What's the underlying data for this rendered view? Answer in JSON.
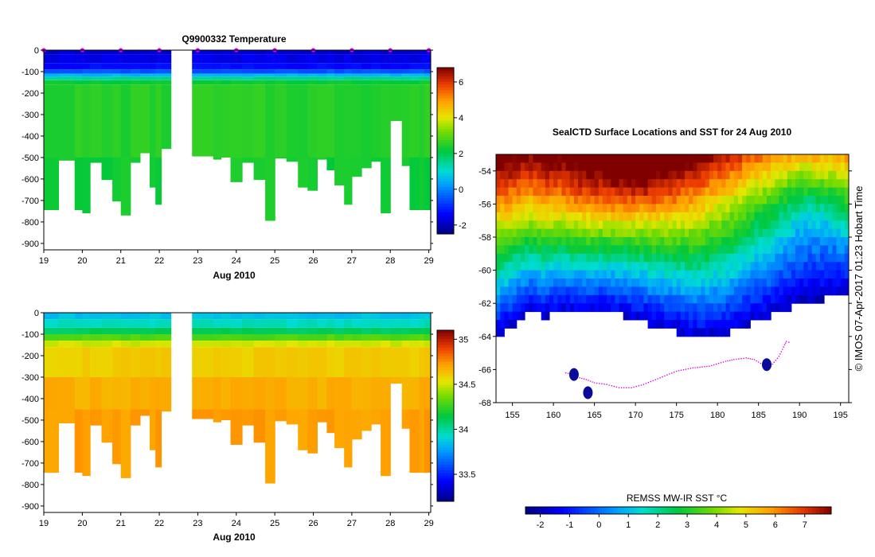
{
  "chart_data": [
    {
      "id": "temperature",
      "type": "heatmap",
      "title": "Q9900332  Temperature",
      "xlabel": "Aug 2010",
      "x_ticks": [
        19,
        20,
        21,
        22,
        23,
        24,
        25,
        26,
        27,
        28,
        29
      ],
      "xlim": [
        19,
        29.05
      ],
      "y_ticks": [
        0,
        -100,
        -200,
        -300,
        -400,
        -500,
        -600,
        -700,
        -800,
        -900
      ],
      "ylim": [
        -930,
        0
      ],
      "profile_x_edges": [
        19.0,
        19.38,
        19.8,
        20.0,
        20.2,
        20.5,
        20.78,
        21.0,
        21.25,
        21.5,
        21.75,
        21.9,
        22.05,
        22.3,
        22.85,
        23.4,
        23.6,
        23.85,
        24.15,
        24.45,
        24.75,
        25.0,
        25.3,
        25.6,
        25.85,
        26.1,
        26.35,
        26.55,
        26.8,
        27.0,
        27.25,
        27.5,
        27.75,
        28.0,
        28.3,
        28.5,
        28.75,
        28.88,
        29.05
      ],
      "profile_max_depth": [
        745,
        515,
        745,
        760,
        525,
        605,
        705,
        770,
        525,
        480,
        640,
        720,
        460,
        0,
        495,
        510,
        500,
        615,
        525,
        605,
        795,
        505,
        520,
        640,
        655,
        510,
        560,
        630,
        720,
        590,
        550,
        520,
        760,
        330,
        540,
        745,
        745,
        745
      ],
      "gap": [
        22.85,
        23.4
      ],
      "markers_x": [
        19.0,
        20.0,
        21.0,
        22.0,
        23.0,
        24.0,
        25.0,
        26.0,
        27.0,
        28.0,
        29.0
      ],
      "layers": [
        {
          "to": 20,
          "value": -1.8
        },
        {
          "to": 60,
          "value": -1.6
        },
        {
          "to": 90,
          "value": -1.3
        },
        {
          "to": 110,
          "value": -0.5
        },
        {
          "to": 125,
          "value": 0.6
        },
        {
          "to": 140,
          "value": 1.5
        },
        {
          "to": 160,
          "value": 2.2
        },
        {
          "to": 500,
          "value": 2.5
        },
        {
          "to": 800,
          "value": 2.3
        }
      ],
      "colorbar": {
        "ticks": [
          -2,
          0,
          2,
          4,
          6
        ],
        "range": [
          -2.5,
          6.8
        ]
      }
    },
    {
      "id": "salinity",
      "type": "heatmap",
      "title": "",
      "xlabel": "Aug 2010",
      "x_ticks": [
        19,
        20,
        21,
        22,
        23,
        24,
        25,
        26,
        27,
        28,
        29
      ],
      "xlim": [
        19,
        29.05
      ],
      "y_ticks": [
        0,
        -100,
        -200,
        -300,
        -400,
        -500,
        -600,
        -700,
        -800,
        -900
      ],
      "ylim": [
        -930,
        0
      ],
      "layers": [
        {
          "to": 30,
          "value": 33.85
        },
        {
          "to": 70,
          "value": 33.95
        },
        {
          "to": 100,
          "value": 34.1
        },
        {
          "to": 130,
          "value": 34.3
        },
        {
          "to": 160,
          "value": 34.5
        },
        {
          "to": 300,
          "value": 34.6
        },
        {
          "to": 450,
          "value": 34.68
        },
        {
          "to": 800,
          "value": 34.72
        }
      ],
      "colorbar": {
        "ticks": [
          33.5,
          34,
          34.5,
          35
        ],
        "range": [
          33.2,
          35.1
        ]
      }
    },
    {
      "id": "sst_map",
      "type": "heatmap",
      "title": "SealCTD Surface Locations and SST for 24 Aug 2010",
      "x_ticks": [
        155,
        160,
        165,
        170,
        175,
        180,
        185,
        190,
        195
      ],
      "xlim": [
        153,
        196
      ],
      "y_ticks": [
        -54,
        -56,
        -58,
        -60,
        -62,
        -64,
        -66,
        -68
      ],
      "ylim": [
        -68,
        -53
      ],
      "colorbar_label": "REMSS MW-IR SST °C",
      "colorbar": {
        "ticks": [
          -2,
          -1,
          0,
          1,
          2,
          3,
          4,
          5,
          6,
          7
        ],
        "range": [
          -2.5,
          7.9
        ]
      },
      "ice_edge": [
        [
          153,
          -64.1
        ],
        [
          155,
          -63.4
        ],
        [
          157,
          -62.6
        ],
        [
          159,
          -62.8
        ],
        [
          161,
          -62.4
        ],
        [
          163,
          -62.6
        ],
        [
          166,
          -62.5
        ],
        [
          168,
          -62.7
        ],
        [
          170,
          -62.9
        ],
        [
          172,
          -63.3
        ],
        [
          174,
          -63.6
        ],
        [
          176,
          -63.9
        ],
        [
          178,
          -64.1
        ],
        [
          180,
          -63.9
        ],
        [
          182,
          -63.7
        ],
        [
          184,
          -63.2
        ],
        [
          186,
          -62.9
        ],
        [
          188,
          -62.4
        ],
        [
          190,
          -62.0
        ],
        [
          192,
          -61.9
        ],
        [
          194,
          -61.6
        ],
        [
          196,
          -61.4
        ]
      ],
      "seal_track": [
        [
          161.5,
          -66.2
        ],
        [
          162.4,
          -66.3
        ],
        [
          163.2,
          -66.5
        ],
        [
          164.0,
          -66.6
        ],
        [
          165,
          -66.8
        ],
        [
          166.5,
          -66.9
        ],
        [
          168,
          -67.1
        ],
        [
          169.5,
          -67.1
        ],
        [
          171,
          -66.9
        ],
        [
          173,
          -66.5
        ],
        [
          175,
          -66.1
        ],
        [
          177,
          -65.9
        ],
        [
          179,
          -65.8
        ],
        [
          181,
          -65.5
        ],
        [
          182,
          -65.4
        ],
        [
          183.5,
          -65.3
        ],
        [
          184.5,
          -65.4
        ],
        [
          185.5,
          -65.7
        ],
        [
          186.5,
          -65.8
        ],
        [
          187.5,
          -65.2
        ],
        [
          188.2,
          -64.5
        ],
        [
          188.4,
          -64.3
        ],
        [
          189.0,
          -64.4
        ]
      ],
      "ice_patches": [
        [
          162.5,
          -66.3
        ],
        [
          164.2,
          -67.4
        ],
        [
          186.0,
          -65.7
        ]
      ]
    }
  ],
  "credit": "©  IMOS 07-Apr-2017 01:23 Hobart Time"
}
